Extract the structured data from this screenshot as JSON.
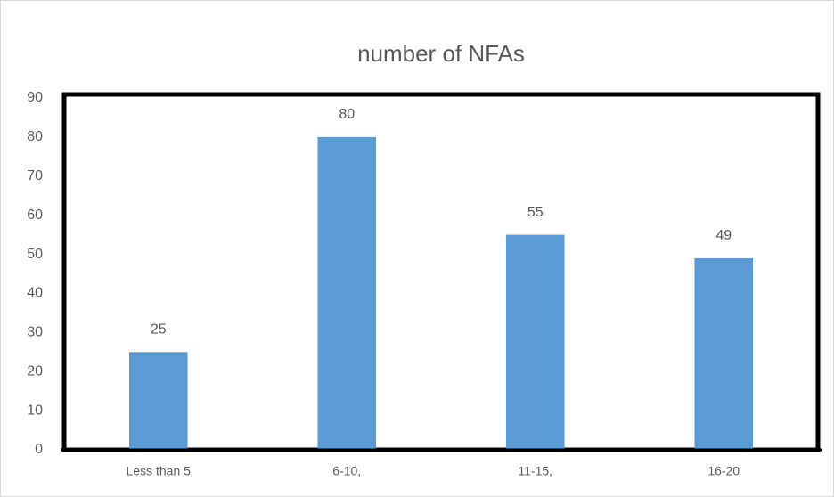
{
  "chart_data": {
    "type": "bar",
    "title": "number of NFAs",
    "categories": [
      "Less than 5",
      "6-10,",
      "11-15,",
      "16-20"
    ],
    "values": [
      25,
      80,
      55,
      49
    ],
    "color": "#5b9bd5",
    "ylim": [
      0,
      90
    ],
    "yticks": [
      0,
      10,
      20,
      30,
      40,
      50,
      60,
      70,
      80,
      90
    ],
    "grid": false,
    "data_labels": true
  }
}
